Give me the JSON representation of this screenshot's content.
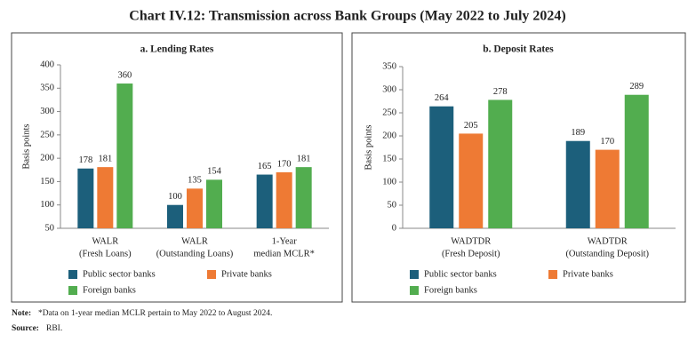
{
  "title": "Chart IV.12: Transmission across Bank Groups (May 2022 to July 2024)",
  "note_label": "Note:",
  "note": "*Data on 1-year median MCLR pertain to May 2022 to August 2024.",
  "source_label": "Source:",
  "source": "RBI.",
  "chart_data": [
    {
      "type": "bar",
      "title": "a. Lending Rates",
      "ylabel": "Basis points",
      "categories": [
        [
          "WALR",
          "(Fresh Loans)"
        ],
        [
          "WALR",
          "(Outstanding Loans)"
        ],
        [
          "1-Year",
          "median MCLR*"
        ]
      ],
      "series": [
        {
          "name": "Public sector banks",
          "color": "#1c5f7b",
          "values": [
            178,
            100,
            165
          ]
        },
        {
          "name": "Private banks",
          "color": "#ee7a34",
          "values": [
            181,
            135,
            170
          ]
        },
        {
          "name": "Foreign banks",
          "color": "#52ad4f",
          "values": [
            360,
            154,
            181
          ]
        }
      ],
      "ylim": [
        50,
        400
      ],
      "yticks": [
        50,
        100,
        150,
        200,
        250,
        300,
        350,
        400
      ]
    },
    {
      "type": "bar",
      "title": "b. Deposit Rates",
      "ylabel": "Basis points",
      "categories": [
        [
          "WADTDR",
          "(Fresh Deposit)"
        ],
        [
          "WADTDR",
          "(Outstanding Deposit)"
        ]
      ],
      "series": [
        {
          "name": "Public sector banks",
          "color": "#1c5f7b",
          "values": [
            264,
            189
          ]
        },
        {
          "name": "Private banks",
          "color": "#ee7a34",
          "values": [
            205,
            170
          ]
        },
        {
          "name": "Foreign banks",
          "color": "#52ad4f",
          "values": [
            278,
            289
          ]
        }
      ],
      "ylim": [
        0,
        350
      ],
      "yticks": [
        0,
        50,
        100,
        150,
        200,
        250,
        300,
        350
      ]
    }
  ]
}
